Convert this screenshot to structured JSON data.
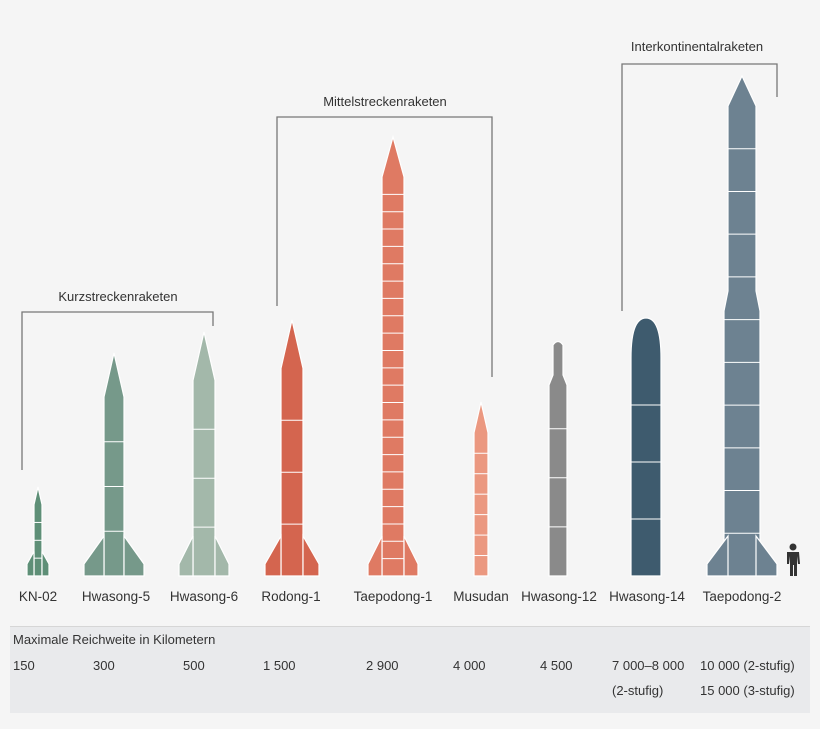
{
  "groups": [
    {
      "label": "Kurzstreckenraketen"
    },
    {
      "label": "Mittelstreckenraketen"
    },
    {
      "label": "Interkontinentalraketen"
    }
  ],
  "missiles": [
    {
      "name": "KN-02",
      "range": "150",
      "range2": "",
      "color": "#5e8f77"
    },
    {
      "name": "Hwasong-5",
      "range": "300",
      "range2": "",
      "color": "#76998a"
    },
    {
      "name": "Hwasong-6",
      "range": "500",
      "range2": "",
      "color": "#a3b8aa"
    },
    {
      "name": "Rodong-1",
      "range": "1 500",
      "range2": "",
      "color": "#d4654f"
    },
    {
      "name": "Taepodong-1",
      "range": "2 900",
      "range2": "",
      "color": "#df7a63"
    },
    {
      "name": "Musudan",
      "range": "4 000",
      "range2": "",
      "color": "#eb9880"
    },
    {
      "name": "Hwasong-12",
      "range": "4 500",
      "range2": "",
      "color": "#8a8a8a"
    },
    {
      "name": "Hwasong-14",
      "range": "7 000–8 000",
      "range2": "(2-stufig)",
      "color": "#3e5b6e"
    },
    {
      "name": "Taepodong-2",
      "range": "10 000 (2-stufig)",
      "range2": "15 000 (3-stufig)",
      "color": "#6d8291"
    }
  ],
  "table_title": "Maximale Reichweite in Kilometern",
  "icons": {
    "scale_reference": "person-icon"
  }
}
